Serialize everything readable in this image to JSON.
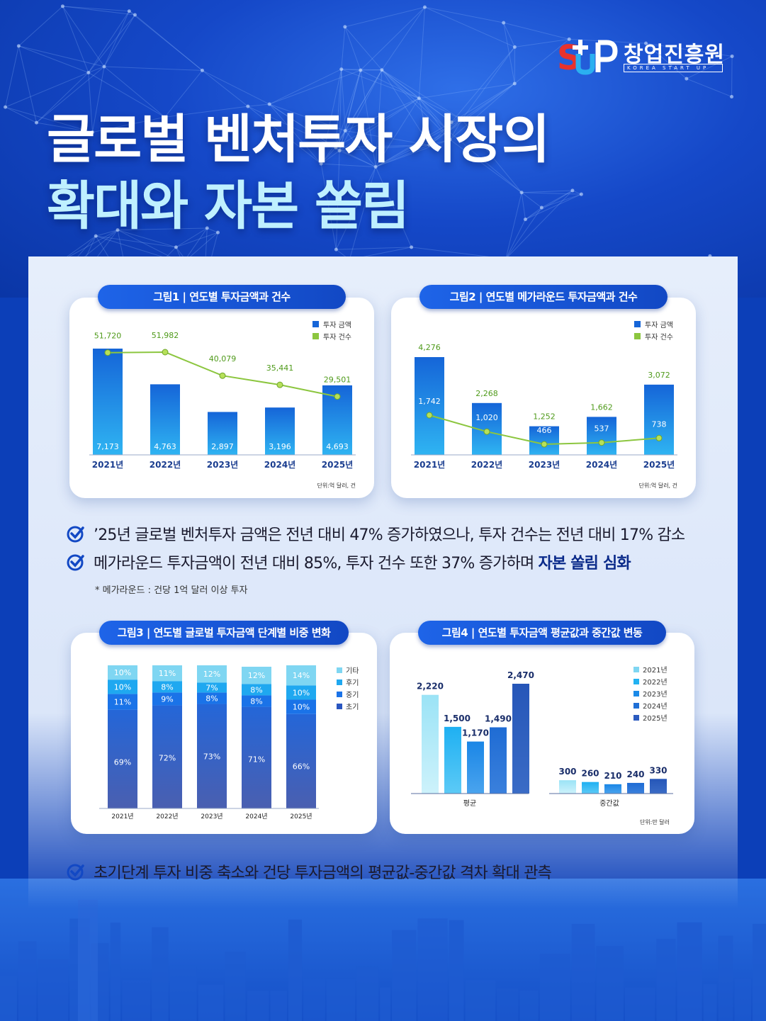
{
  "logo": {
    "name": "창업진흥원",
    "sub": "KOREA  START UP",
    "mark_text": "SUP"
  },
  "title": {
    "line1": "글로벌 벤처투자 시장의",
    "line2": "확대와 자본 쏠림"
  },
  "colors": {
    "bar_blue": "#1c6fe0",
    "line_green": "#8cc63f",
    "accent": "#1248c4"
  },
  "chart_data": [
    {
      "type": "bar",
      "title": "그림1 | 연도별 투자금액과 건수",
      "categories": [
        "2021년",
        "2022년",
        "2023년",
        "2024년",
        "2025년"
      ],
      "series": [
        {
          "name": "투자 금액",
          "values": [
            7173,
            4763,
            2897,
            3196,
            4693
          ]
        },
        {
          "name": "투자 건수",
          "values": [
            51720,
            51982,
            40079,
            35441,
            29501
          ]
        }
      ],
      "value_labels_amount": [
        "7,173",
        "4,763",
        "2,897",
        "3,196",
        "4,693"
      ],
      "value_labels_count": [
        "51,720",
        "51,982",
        "40,079",
        "35,441",
        "29,501"
      ],
      "unit_note": "단위:억 달러, 건",
      "legend": "top-right"
    },
    {
      "type": "bar",
      "title": "그림2 | 연도별 메가라운드 투자금액과 건수",
      "categories": [
        "2021년",
        "2022년",
        "2023년",
        "2024년",
        "2025년"
      ],
      "series": [
        {
          "name": "투자 금액",
          "values": [
            4276,
            2268,
            1252,
            1662,
            3072
          ]
        },
        {
          "name": "투자 건수",
          "values": [
            1742,
            1020,
            466,
            537,
            738
          ]
        }
      ],
      "value_labels_amount": [
        "4,276",
        "2,268",
        "1,252",
        "1,662",
        "3,072"
      ],
      "value_labels_count": [
        "1,742",
        "1,020",
        "466",
        "537",
        "738"
      ],
      "unit_note": "단위:억 달러, 건",
      "legend": "top-right"
    },
    {
      "type": "bar",
      "title": "그림3 | 연도별 글로벌 투자금액 단계별 비중 변화",
      "stacked": true,
      "categories": [
        "2021년",
        "2022년",
        "2023년",
        "2024년",
        "2025년"
      ],
      "series": [
        {
          "name": "초기",
          "values": [
            69,
            72,
            73,
            71,
            66
          ]
        },
        {
          "name": "중기",
          "values": [
            11,
            9,
            8,
            8,
            10
          ]
        },
        {
          "name": "후기",
          "values": [
            10,
            8,
            7,
            8,
            10
          ]
        },
        {
          "name": "기타",
          "values": [
            10,
            11,
            12,
            12,
            14
          ]
        }
      ],
      "legend_order": [
        "기타",
        "후기",
        "중기",
        "초기"
      ],
      "legend": "right"
    },
    {
      "type": "bar",
      "title": "그림4 | 연도별 투자금액 평균값과 중간값 변동",
      "groups": [
        "평균",
        "중간값"
      ],
      "series": [
        {
          "name": "2021년",
          "values": [
            2220,
            300
          ]
        },
        {
          "name": "2022년",
          "values": [
            1500,
            260
          ]
        },
        {
          "name": "2023년",
          "values": [
            1170,
            210
          ]
        },
        {
          "name": "2024년",
          "values": [
            1490,
            240
          ]
        },
        {
          "name": "2025년",
          "values": [
            2470,
            330
          ]
        }
      ],
      "value_labels": [
        [
          "2,220",
          "300"
        ],
        [
          "1,500",
          "260"
        ],
        [
          "1,170",
          "210"
        ],
        [
          "1,490",
          "240"
        ],
        [
          "2,470",
          "330"
        ]
      ],
      "unit_note": "단위:만 달러",
      "legend": "top-right"
    }
  ],
  "bullets": {
    "b1": "’25년 글로벌 벤처투자 금액은 전년 대비 47% 증가하였으나, 투자 건수는 전년 대비  17% 감소",
    "b2": "메가라운드 투자금액이 전년 대비 85%, 투자 건수  또한 37% 증가하며",
    "b2_bold": "자본 쏠림 심화",
    "note": "* 메가라운드 : 건당 1억 달러 이상 투자",
    "b3": "초기단계 투자 비중 축소와 건당 투자금액의 평균값-중간값 격차 확대 관측"
  }
}
